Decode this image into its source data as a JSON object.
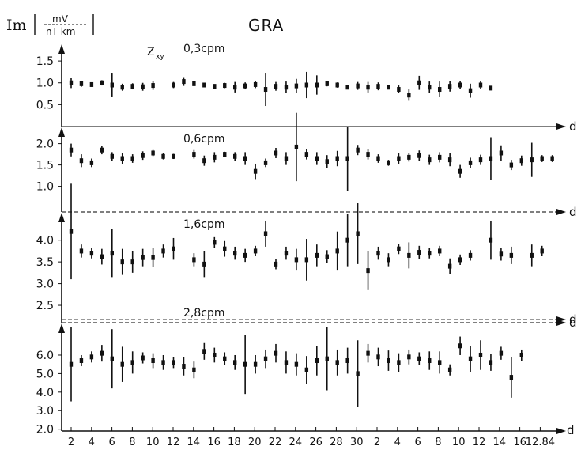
{
  "header": {
    "ylabel_im": "Im",
    "ylabel_num": "mV",
    "ylabel_den": "nT km",
    "station": "GRA",
    "component": "Z",
    "component_sub": "xy"
  },
  "chart_data": {
    "type": "scatter",
    "x_unit": "d",
    "x_tick_labels": [
      "2",
      "4",
      "6",
      "8",
      "10",
      "12",
      "14",
      "16",
      "18",
      "20",
      "22",
      "24",
      "26",
      "28",
      "30",
      "2",
      "4",
      "6",
      "8",
      "10",
      "12",
      "14",
      "16",
      "12.84"
    ],
    "panels": [
      {
        "name": "0.3cpm",
        "label": "0,3cpm",
        "ticks": [
          "1.5",
          "1.0",
          "0.5"
        ],
        "tick_values": [
          1.5,
          1.0,
          0.5
        ],
        "ylim": [
          0,
          1.9
        ],
        "points": [
          [
            1,
            1.0,
            0.12
          ],
          [
            2,
            0.98,
            0.07
          ],
          [
            3,
            0.96,
            0.05
          ],
          [
            4,
            1.0,
            0.06
          ],
          [
            5,
            0.95,
            0.28
          ],
          [
            6,
            0.9,
            0.08
          ],
          [
            7,
            0.92,
            0.07
          ],
          [
            8,
            0.91,
            0.09
          ],
          [
            9,
            0.94,
            0.1
          ],
          [
            11,
            0.95,
            0.07
          ],
          [
            12,
            1.03,
            0.1
          ],
          [
            13,
            0.98,
            0.05
          ],
          [
            14,
            0.95,
            0.05
          ],
          [
            15,
            0.92,
            0.05
          ],
          [
            16,
            0.94,
            0.06
          ],
          [
            17,
            0.9,
            0.12
          ],
          [
            18,
            0.93,
            0.08
          ],
          [
            19,
            0.96,
            0.08
          ],
          [
            20,
            0.85,
            0.38
          ],
          [
            21,
            0.92,
            0.1
          ],
          [
            22,
            0.9,
            0.13
          ],
          [
            23,
            0.93,
            0.16
          ],
          [
            24,
            0.95,
            0.3
          ],
          [
            25,
            0.95,
            0.22
          ],
          [
            26,
            0.98,
            0.06
          ],
          [
            27,
            0.95,
            0.06
          ],
          [
            28,
            0.9,
            0.05
          ],
          [
            29,
            0.93,
            0.09
          ],
          [
            30,
            0.9,
            0.12
          ],
          [
            31,
            0.92,
            0.09
          ],
          [
            32,
            0.9,
            0.05
          ],
          [
            33,
            0.85,
            0.09
          ],
          [
            34,
            0.72,
            0.13
          ],
          [
            35,
            1.0,
            0.16
          ],
          [
            36,
            0.9,
            0.13
          ],
          [
            37,
            0.85,
            0.18
          ],
          [
            38,
            0.92,
            0.12
          ],
          [
            39,
            0.95,
            0.09
          ],
          [
            40,
            0.82,
            0.16
          ],
          [
            41,
            0.95,
            0.09
          ],
          [
            42,
            0.88,
            0.05
          ]
        ]
      },
      {
        "name": "0.6cpm",
        "label": "0,6cpm",
        "ticks": [
          "2.0",
          "1.5",
          "1.0"
        ],
        "tick_values": [
          2.0,
          1.5,
          1.0
        ],
        "ylim": [
          0.4,
          2.4
        ],
        "points": [
          [
            1,
            1.85,
            0.15
          ],
          [
            2,
            1.6,
            0.15
          ],
          [
            3,
            1.55,
            0.1
          ],
          [
            4,
            1.85,
            0.1
          ],
          [
            5,
            1.7,
            0.1
          ],
          [
            6,
            1.65,
            0.12
          ],
          [
            7,
            1.65,
            0.1
          ],
          [
            8,
            1.72,
            0.1
          ],
          [
            9,
            1.78,
            0.07
          ],
          [
            10,
            1.7,
            0.07
          ],
          [
            11,
            1.7,
            0.06
          ],
          [
            13,
            1.75,
            0.1
          ],
          [
            14,
            1.6,
            0.12
          ],
          [
            15,
            1.68,
            0.12
          ],
          [
            16,
            1.75,
            0.06
          ],
          [
            17,
            1.7,
            0.1
          ],
          [
            18,
            1.65,
            0.15
          ],
          [
            19,
            1.35,
            0.18
          ],
          [
            20,
            1.55,
            0.1
          ],
          [
            21,
            1.78,
            0.12
          ],
          [
            22,
            1.65,
            0.15
          ],
          [
            23,
            1.92,
            0.8
          ],
          [
            24,
            1.75,
            0.12
          ],
          [
            25,
            1.65,
            0.15
          ],
          [
            26,
            1.58,
            0.15
          ],
          [
            27,
            1.65,
            0.18
          ],
          [
            28,
            1.65,
            0.75
          ],
          [
            29,
            1.85,
            0.12
          ],
          [
            30,
            1.75,
            0.12
          ],
          [
            31,
            1.65,
            0.1
          ],
          [
            32,
            1.55,
            0.07
          ],
          [
            33,
            1.65,
            0.12
          ],
          [
            34,
            1.68,
            0.1
          ],
          [
            35,
            1.72,
            0.12
          ],
          [
            36,
            1.62,
            0.12
          ],
          [
            37,
            1.68,
            0.12
          ],
          [
            38,
            1.62,
            0.15
          ],
          [
            39,
            1.35,
            0.15
          ],
          [
            40,
            1.55,
            0.12
          ],
          [
            41,
            1.62,
            0.12
          ],
          [
            42,
            1.65,
            0.5
          ],
          [
            43,
            1.78,
            0.18
          ],
          [
            44,
            1.5,
            0.12
          ],
          [
            45,
            1.6,
            0.12
          ],
          [
            46,
            1.62,
            0.4
          ],
          [
            47,
            1.65,
            0.08
          ],
          [
            48,
            1.65,
            0.08
          ]
        ]
      },
      {
        "name": "1.6cpm",
        "label": "1,6cpm",
        "ticks": [
          "4.0",
          "3.5",
          "3.0",
          "2.5"
        ],
        "tick_values": [
          4.0,
          3.5,
          3.0,
          2.5
        ],
        "ylim": [
          2.1,
          4.65
        ],
        "points": [
          [
            1,
            4.2,
            1.1
          ],
          [
            2,
            3.75,
            0.15
          ],
          [
            3,
            3.7,
            0.12
          ],
          [
            4,
            3.62,
            0.18
          ],
          [
            5,
            3.7,
            0.55
          ],
          [
            6,
            3.5,
            0.3
          ],
          [
            7,
            3.5,
            0.25
          ],
          [
            8,
            3.6,
            0.2
          ],
          [
            9,
            3.6,
            0.22
          ],
          [
            10,
            3.75,
            0.15
          ],
          [
            11,
            3.8,
            0.25
          ],
          [
            13,
            3.55,
            0.15
          ],
          [
            14,
            3.45,
            0.3
          ],
          [
            15,
            3.95,
            0.12
          ],
          [
            16,
            3.8,
            0.18
          ],
          [
            17,
            3.7,
            0.15
          ],
          [
            18,
            3.65,
            0.15
          ],
          [
            19,
            3.75,
            0.12
          ],
          [
            20,
            4.15,
            0.3
          ],
          [
            21,
            3.45,
            0.12
          ],
          [
            22,
            3.7,
            0.15
          ],
          [
            23,
            3.55,
            0.25
          ],
          [
            24,
            3.55,
            0.48
          ],
          [
            25,
            3.65,
            0.25
          ],
          [
            26,
            3.62,
            0.15
          ],
          [
            27,
            3.75,
            0.45
          ],
          [
            28,
            4.0,
            0.6
          ],
          [
            29,
            4.15,
            0.7
          ],
          [
            30,
            3.3,
            0.45
          ],
          [
            31,
            3.7,
            0.15
          ],
          [
            32,
            3.55,
            0.15
          ],
          [
            33,
            3.8,
            0.12
          ],
          [
            34,
            3.65,
            0.3
          ],
          [
            35,
            3.72,
            0.15
          ],
          [
            36,
            3.7,
            0.12
          ],
          [
            37,
            3.75,
            0.12
          ],
          [
            38,
            3.4,
            0.18
          ],
          [
            39,
            3.55,
            0.12
          ],
          [
            40,
            3.65,
            0.12
          ],
          [
            42,
            4.0,
            0.45
          ],
          [
            43,
            3.68,
            0.15
          ],
          [
            44,
            3.65,
            0.2
          ],
          [
            46,
            3.65,
            0.25
          ],
          [
            47,
            3.75,
            0.12
          ]
        ]
      },
      {
        "name": "2.8cpm",
        "label": "2,8cpm",
        "ticks": [
          "6.0",
          "5.0",
          "4.0",
          "3.0",
          "2.0"
        ],
        "tick_values": [
          6.0,
          5.0,
          4.0,
          3.0,
          2.0
        ],
        "ylim": [
          1.9,
          7.75
        ],
        "points": [
          [
            1,
            5.5,
            2.0
          ],
          [
            2,
            5.7,
            0.3
          ],
          [
            3,
            5.9,
            0.3
          ],
          [
            4,
            6.1,
            0.45
          ],
          [
            5,
            5.8,
            1.6
          ],
          [
            6,
            5.5,
            0.95
          ],
          [
            7,
            5.6,
            0.6
          ],
          [
            8,
            5.85,
            0.3
          ],
          [
            9,
            5.7,
            0.4
          ],
          [
            10,
            5.6,
            0.4
          ],
          [
            11,
            5.6,
            0.3
          ],
          [
            12,
            5.4,
            0.5
          ],
          [
            13,
            5.2,
            0.45
          ],
          [
            14,
            6.2,
            0.45
          ],
          [
            15,
            6.0,
            0.4
          ],
          [
            16,
            5.8,
            0.35
          ],
          [
            17,
            5.6,
            0.4
          ],
          [
            18,
            5.5,
            1.6
          ],
          [
            19,
            5.5,
            0.5
          ],
          [
            20,
            5.8,
            0.5
          ],
          [
            21,
            6.1,
            0.5
          ],
          [
            22,
            5.6,
            0.6
          ],
          [
            23,
            5.5,
            0.6
          ],
          [
            24,
            5.2,
            0.75
          ],
          [
            25,
            5.7,
            0.8
          ],
          [
            26,
            5.8,
            1.7
          ],
          [
            27,
            5.6,
            0.7
          ],
          [
            28,
            5.7,
            0.7
          ],
          [
            29,
            5.0,
            1.8
          ],
          [
            30,
            6.1,
            0.5
          ],
          [
            31,
            5.9,
            0.5
          ],
          [
            32,
            5.7,
            0.55
          ],
          [
            33,
            5.6,
            0.5
          ],
          [
            34,
            5.9,
            0.4
          ],
          [
            35,
            5.8,
            0.35
          ],
          [
            36,
            5.7,
            0.5
          ],
          [
            37,
            5.6,
            0.6
          ],
          [
            38,
            5.2,
            0.3
          ],
          [
            39,
            6.5,
            0.5
          ],
          [
            40,
            5.8,
            0.7
          ],
          [
            41,
            6.0,
            0.8
          ],
          [
            42,
            5.6,
            0.45
          ],
          [
            43,
            6.1,
            0.35
          ],
          [
            44,
            4.8,
            1.1
          ],
          [
            45,
            6.0,
            0.3
          ]
        ]
      }
    ]
  }
}
